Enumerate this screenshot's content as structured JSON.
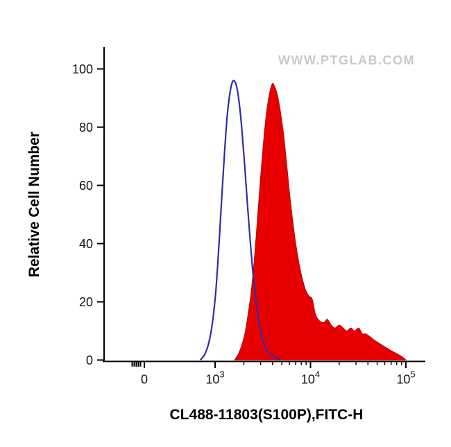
{
  "chart_data": {
    "type": "area",
    "subtype": "flow-cytometry-histogram-overlay",
    "title": "",
    "xlabel": "CL488-11803(S100P),FITC-H",
    "ylabel": "Relative Cell Number",
    "watermark": "WWW.PTGLAB.COM",
    "grid": false,
    "legend": "none",
    "ylim": [
      0,
      100
    ],
    "x_axis": {
      "scale": "logicle",
      "major_ticks": [
        {
          "label": "0",
          "value": 0
        },
        {
          "base": "10",
          "exp": "3",
          "value": 1000
        },
        {
          "base": "10",
          "exp": "4",
          "value": 10000
        },
        {
          "base": "10",
          "exp": "5",
          "value": 100000
        }
      ]
    },
    "y_axis": {
      "ticks": [
        0,
        20,
        40,
        60,
        80,
        100
      ],
      "range": [
        0,
        100
      ]
    },
    "series": [
      {
        "name": "red-filled-histogram",
        "style": "filled",
        "fill": "#e80000",
        "stroke": "#b30000",
        "stroke_width": 1,
        "points": [
          [
            1600,
            0
          ],
          [
            1750,
            2
          ],
          [
            1900,
            5
          ],
          [
            2050,
            9
          ],
          [
            2200,
            15
          ],
          [
            2400,
            24
          ],
          [
            2600,
            36
          ],
          [
            2800,
            50
          ],
          [
            3000,
            63
          ],
          [
            3200,
            74
          ],
          [
            3400,
            83
          ],
          [
            3600,
            89
          ],
          [
            3800,
            93
          ],
          [
            4000,
            95
          ],
          [
            4200,
            94
          ],
          [
            4500,
            91
          ],
          [
            4800,
            86
          ],
          [
            5200,
            78
          ],
          [
            5600,
            68
          ],
          [
            6000,
            58
          ],
          [
            6500,
            48
          ],
          [
            7000,
            40
          ],
          [
            7600,
            33
          ],
          [
            8200,
            28
          ],
          [
            8900,
            24
          ],
          [
            9600,
            22
          ],
          [
            10400,
            21
          ],
          [
            11200,
            16
          ],
          [
            12000,
            14
          ],
          [
            13000,
            13
          ],
          [
            14000,
            13
          ],
          [
            15000,
            14
          ],
          [
            16500,
            12
          ],
          [
            18000,
            11
          ],
          [
            20000,
            12
          ],
          [
            22000,
            11
          ],
          [
            24000,
            10
          ],
          [
            26500,
            11
          ],
          [
            29000,
            10
          ],
          [
            32000,
            11
          ],
          [
            35000,
            9
          ],
          [
            38000,
            9
          ],
          [
            42000,
            8
          ],
          [
            46000,
            7
          ],
          [
            51000,
            6
          ],
          [
            57000,
            5
          ],
          [
            64000,
            4
          ],
          [
            72000,
            3
          ],
          [
            82000,
            2
          ],
          [
            92000,
            1
          ],
          [
            100000,
            0
          ]
        ]
      },
      {
        "name": "blue-open-histogram",
        "style": "open",
        "fill": "none",
        "stroke": "#2d2daa",
        "stroke_width": 2.2,
        "points": [
          [
            700,
            0
          ],
          [
            780,
            2
          ],
          [
            860,
            6
          ],
          [
            940,
            13
          ],
          [
            1020,
            24
          ],
          [
            1100,
            40
          ],
          [
            1180,
            57
          ],
          [
            1260,
            72
          ],
          [
            1340,
            84
          ],
          [
            1420,
            91
          ],
          [
            1500,
            95
          ],
          [
            1580,
            96
          ],
          [
            1680,
            94
          ],
          [
            1780,
            89
          ],
          [
            1900,
            80
          ],
          [
            2050,
            66
          ],
          [
            2200,
            52
          ],
          [
            2400,
            36
          ],
          [
            2600,
            24
          ],
          [
            2850,
            14
          ],
          [
            3100,
            8
          ],
          [
            3400,
            4
          ],
          [
            3800,
            2
          ],
          [
            4300,
            1
          ],
          [
            4800,
            0
          ]
        ]
      }
    ]
  }
}
